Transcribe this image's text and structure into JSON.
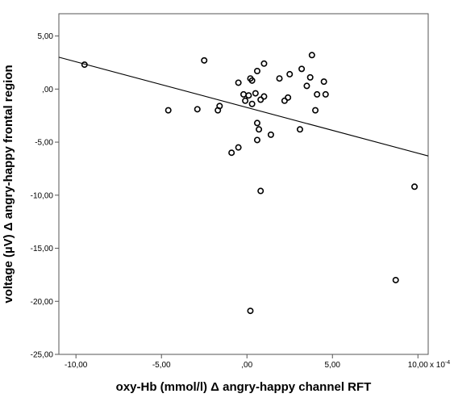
{
  "chart_data": {
    "type": "scatter",
    "xlabel": "oxy-Hb (mmol/l) Δ angry-happy channel RFT",
    "ylabel": "voltage (µV) Δ angry-happy frontal region",
    "x_multiplier_label": "x 10",
    "x_multiplier_exponent": "-4",
    "xlim": [
      -11.0,
      10.6
    ],
    "ylim": [
      -25.0,
      7.1
    ],
    "x_ticks": [
      -10,
      -5,
      0,
      5,
      10
    ],
    "x_tick_labels": [
      "-10,00",
      "-5,00",
      ",00",
      "5,00",
      "10,00"
    ],
    "y_ticks": [
      5,
      0,
      -5,
      -10,
      -15,
      -20,
      -25
    ],
    "y_tick_labels": [
      "5,00",
      ",00",
      "-5,00",
      "-10,00",
      "-15,00",
      "-20,00",
      "-25,00"
    ],
    "grid": false,
    "legend": "none",
    "points": [
      {
        "x": -9.5,
        "y": 2.3
      },
      {
        "x": -4.6,
        "y": -2.0
      },
      {
        "x": -2.9,
        "y": -1.9
      },
      {
        "x": -2.5,
        "y": 2.7
      },
      {
        "x": -1.6,
        "y": -1.6
      },
      {
        "x": -1.7,
        "y": -2.0
      },
      {
        "x": -0.9,
        "y": -6.0
      },
      {
        "x": -0.5,
        "y": -5.5
      },
      {
        "x": -0.5,
        "y": 0.6
      },
      {
        "x": -0.2,
        "y": -0.5
      },
      {
        "x": -0.1,
        "y": -1.1
      },
      {
        "x": 0.1,
        "y": -0.6
      },
      {
        "x": 0.2,
        "y": 1.0
      },
      {
        "x": 0.3,
        "y": 0.8
      },
      {
        "x": 0.3,
        "y": -1.4
      },
      {
        "x": 0.5,
        "y": -0.4
      },
      {
        "x": 0.6,
        "y": 1.7
      },
      {
        "x": 0.6,
        "y": -3.2
      },
      {
        "x": 0.6,
        "y": -4.8
      },
      {
        "x": 0.7,
        "y": -3.8
      },
      {
        "x": 0.8,
        "y": -1.0
      },
      {
        "x": 1.0,
        "y": -0.7
      },
      {
        "x": 1.0,
        "y": 2.4
      },
      {
        "x": 0.8,
        "y": -9.6
      },
      {
        "x": 1.4,
        "y": -4.3
      },
      {
        "x": 1.9,
        "y": 1.0
      },
      {
        "x": 2.2,
        "y": -1.1
      },
      {
        "x": 2.4,
        "y": -0.8
      },
      {
        "x": 2.5,
        "y": 1.4
      },
      {
        "x": 3.1,
        "y": -3.8
      },
      {
        "x": 3.2,
        "y": 1.9
      },
      {
        "x": 3.5,
        "y": 0.3
      },
      {
        "x": 3.7,
        "y": 1.1
      },
      {
        "x": 3.8,
        "y": 3.2
      },
      {
        "x": 4.0,
        "y": -2.0
      },
      {
        "x": 4.1,
        "y": -0.5
      },
      {
        "x": 4.5,
        "y": 0.7
      },
      {
        "x": 4.6,
        "y": -0.5
      },
      {
        "x": 0.2,
        "y": -20.9
      },
      {
        "x": 8.7,
        "y": -18.0
      },
      {
        "x": 9.8,
        "y": -9.2
      }
    ],
    "fit_line": {
      "x": [
        -11.0,
        10.6
      ],
      "y": [
        3.0,
        -6.3
      ]
    }
  }
}
